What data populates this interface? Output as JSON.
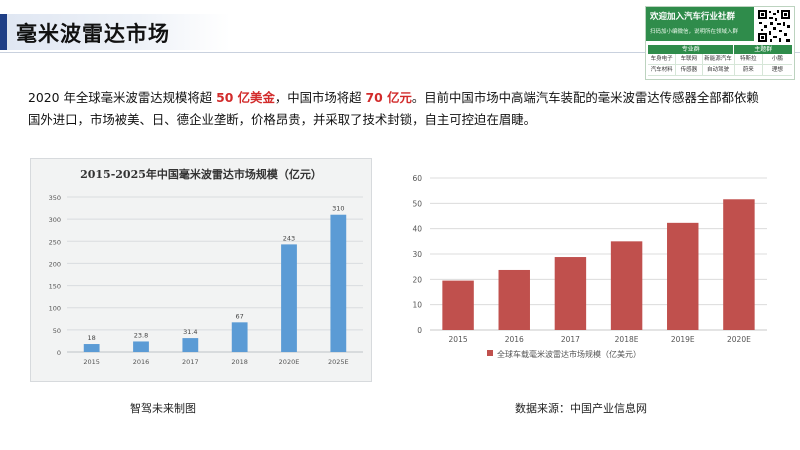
{
  "page": {
    "title": "毫米波雷达市场",
    "paragraph": {
      "p1": "2020 年全球毫米波雷达规模将超 ",
      "h1": "50 亿美金",
      "p2": "，中国市场将超 ",
      "h2": "70 亿元",
      "p3": "。目前中国市场中高端汽车装配的毫米波雷达传感器全部都依赖国外进口，市场被美、日、德企业垄断，价格昂贵，并采取了技术封锁，自主可控迫在眉睫。"
    },
    "caption_left": "智驾未来制图",
    "caption_right": "数据来源：中国产业信息网"
  },
  "ad": {
    "title": "欢迎加入汽车行业社群",
    "subtitle": "扫码加小编微信，说明所在领域入群",
    "groups": [
      "专业群",
      "主题群"
    ],
    "rows": [
      [
        "车身电子",
        "车联网",
        "新能源汽车",
        "特斯拉",
        "小鹏"
      ],
      [
        "汽车材料",
        "传感器",
        "自动驾驶",
        "蔚来",
        "理想"
      ]
    ]
  },
  "colors": {
    "accent": "#1f3f86",
    "highlight": "#d22b2b",
    "bar_left": "#5b9bd5",
    "bar_right": "#c0504d",
    "ad_green": "#2f8c4b"
  },
  "chart_data": [
    {
      "type": "bar",
      "title": "2015-2025年中国毫米波雷达市场规模（亿元）",
      "categories": [
        "2015",
        "2016",
        "2017",
        "2018",
        "2020E",
        "2025E"
      ],
      "values": [
        18,
        23.8,
        31.4,
        67,
        243,
        310
      ],
      "value_labels": [
        "18",
        "23.8",
        "31.4",
        "67",
        "243",
        "310"
      ],
      "ylim": [
        0,
        350
      ],
      "yticks": [
        "0",
        "50",
        "100",
        "150",
        "200",
        "250",
        "300",
        "350"
      ],
      "grid": true,
      "color": "#5b9bd5"
    },
    {
      "type": "bar",
      "title": "",
      "categories": [
        "2015",
        "2016",
        "2017",
        "2018E",
        "2019E",
        "2020E"
      ],
      "values": [
        19.5,
        23.7,
        28.8,
        35,
        42.3,
        51.6
      ],
      "ylim": [
        0,
        60
      ],
      "yticks": [
        "0",
        "10",
        "20",
        "30",
        "40",
        "50",
        "60"
      ],
      "grid": true,
      "legend": "全球车载毫米波雷达市场规模（亿美元）",
      "legend_position": "bottom",
      "color": "#c0504d"
    }
  ]
}
